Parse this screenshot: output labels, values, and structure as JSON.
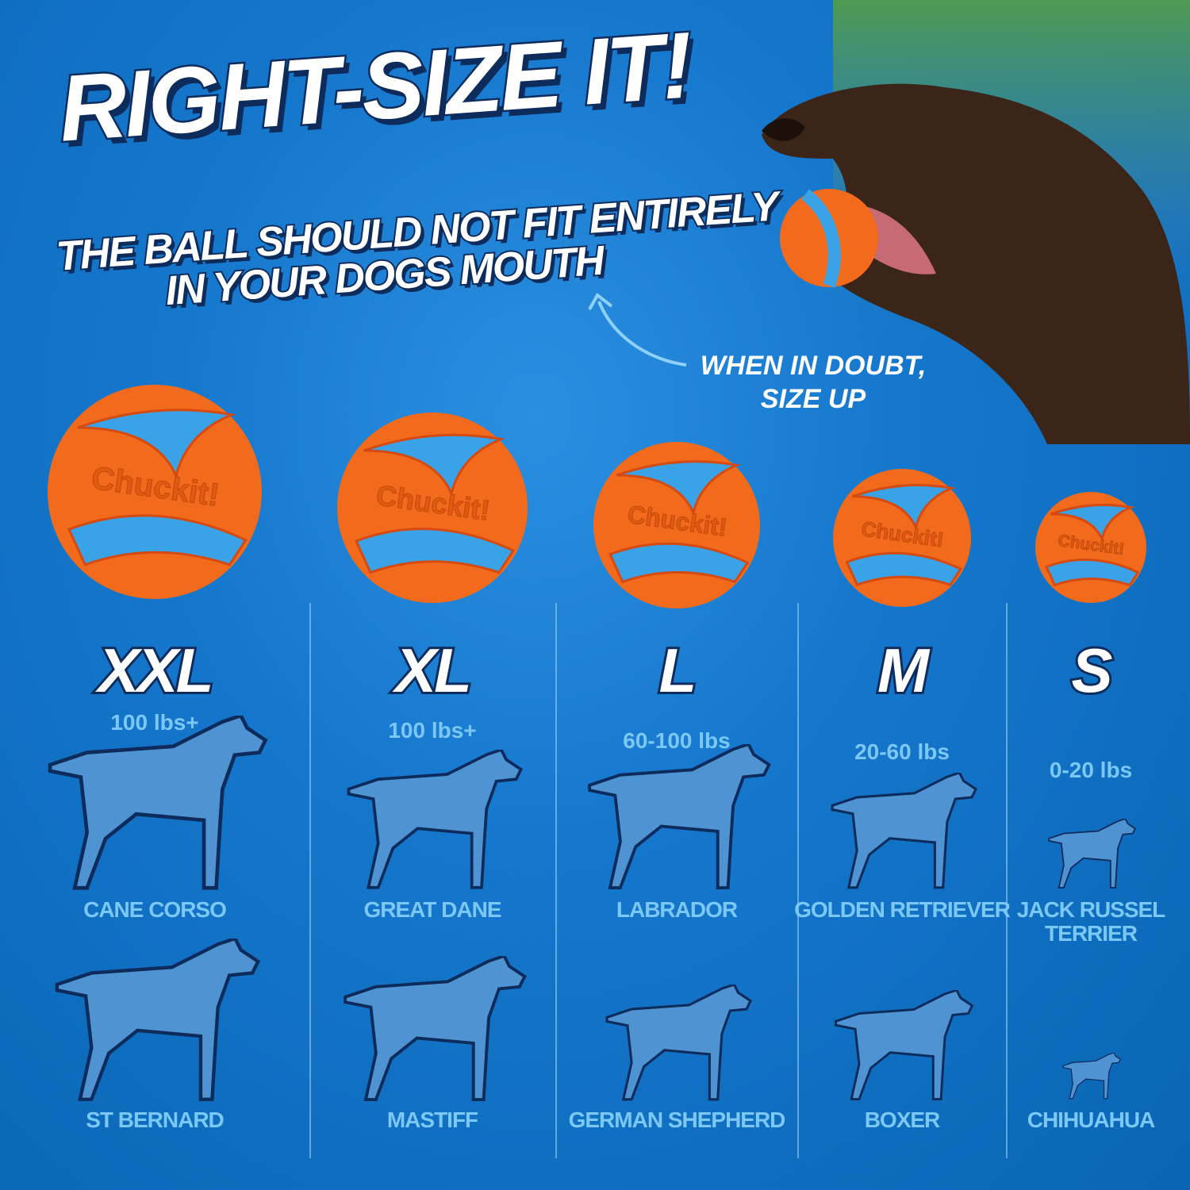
{
  "headline": {
    "title": "RIGHT-SIZE IT!",
    "subtitle_line1": "THE BALL SHOULD NOT FIT ENTIRELY",
    "subtitle_line2": "IN YOUR DOGS MOUTH"
  },
  "callout": {
    "line1": "WHEN IN DOUBT,",
    "line2": "SIZE UP"
  },
  "ball_brand": "Chuckit!",
  "colors": {
    "background": "#1577cc",
    "ball_orange": "#f26a1b",
    "ball_blue": "#3aa3e8",
    "silhouette": "#4f93d2",
    "label": "#7cc8f5",
    "outline": "#0d2c5c"
  },
  "sizes": [
    {
      "size": "XXL",
      "weight": "100 lbs+",
      "breed1": "CANE CORSO",
      "breed2": "ST BERNARD"
    },
    {
      "size": "XL",
      "weight": "100 lbs+",
      "breed1": "GREAT DANE",
      "breed2": "MASTIFF"
    },
    {
      "size": "L",
      "weight": "60-100 lbs",
      "breed1": "LABRADOR",
      "breed2": "GERMAN SHEPHERD"
    },
    {
      "size": "M",
      "weight": "20-60 lbs",
      "breed1": "GOLDEN RETRIEVER",
      "breed2": "BOXER"
    },
    {
      "size": "S",
      "weight": "0-20 lbs",
      "breed1": "JACK RUSSEL TERRIER",
      "breed2": "CHIHUAHUA"
    }
  ]
}
